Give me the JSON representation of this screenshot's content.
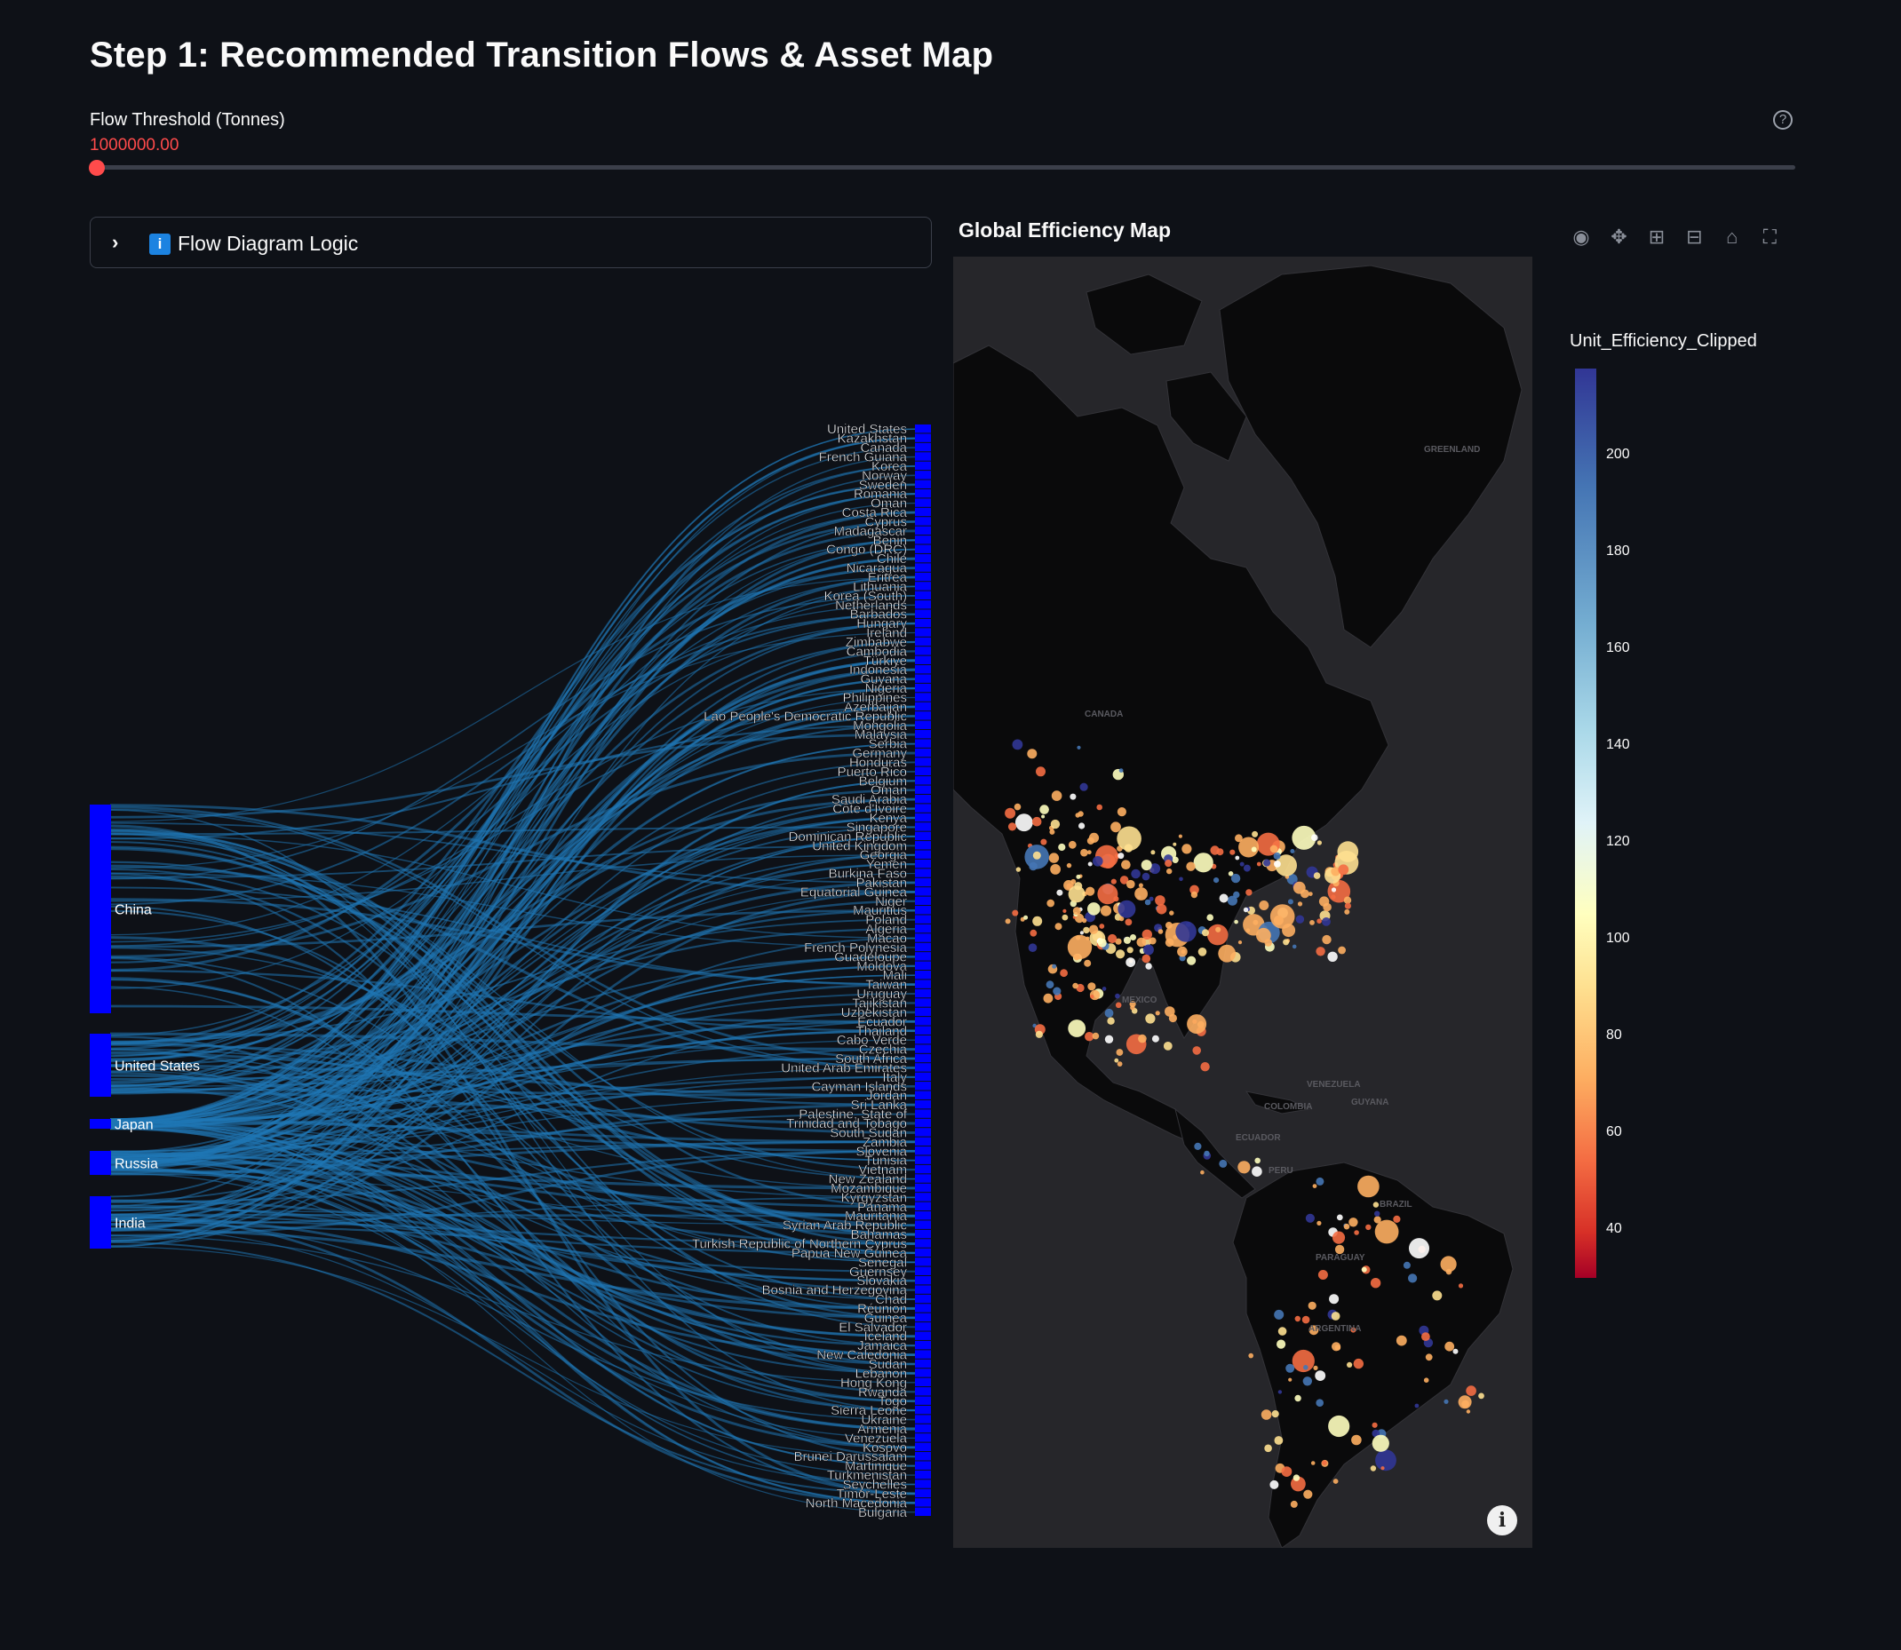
{
  "page": {
    "title": "Step 1: Recommended Transition Flows & Asset Map"
  },
  "slider": {
    "label": "Flow Threshold (Tonnes)",
    "value": "1000000.00",
    "position_fraction": 0.0
  },
  "expander": {
    "label": "Flow Diagram Logic",
    "expanded": false,
    "icon": "info-icon"
  },
  "sankey": {
    "link_color": "#1f77b4",
    "node_color": "#0000ff",
    "sources": [
      {
        "label": "China",
        "share": 0.52
      },
      {
        "label": "United States",
        "share": 0.15
      },
      {
        "label": "Japan",
        "share": 0.025
      },
      {
        "label": "Russia",
        "share": 0.06
      },
      {
        "label": "India",
        "share": 0.13
      }
    ],
    "targets": [
      "United States",
      "Kazakhstan",
      "Canada",
      "French Guiana",
      "Korea",
      "Norway",
      "Sweden",
      "Romania",
      "Oman",
      "Costa Rica",
      "Cyprus",
      "Madagascar",
      "Benin",
      "Congo (DRC)",
      "Chile",
      "Nicaragua",
      "Eritrea",
      "Lithuania",
      "Korea (South)",
      "Netherlands",
      "Barbados",
      "Hungary",
      "Ireland",
      "Zimbabwe",
      "Cambodia",
      "Türkiye",
      "Indonesia",
      "Guyana",
      "Nigeria",
      "Philippines",
      "Azerbaijan",
      "Lao People's Democratic Republic",
      "Mongolia",
      "Malaysia",
      "Serbia",
      "Germany",
      "Honduras",
      "Puerto Rico",
      "Belgium",
      "Oman",
      "Saudi Arabia",
      "Côte d'Ivoire",
      "Kenya",
      "Singapore",
      "Dominican Republic",
      "United Kingdom",
      "Georgia",
      "Yemen",
      "Burkina Faso",
      "Pakistan",
      "Equatorial Guinea",
      "Niger",
      "Mauritius",
      "Poland",
      "Algeria",
      "Macao",
      "French Polynesia",
      "Guadeloupe",
      "Moldova",
      "Mali",
      "Taiwan",
      "Uruguay",
      "Tajikistan",
      "Uzbekistan",
      "Ecuador",
      "Thailand",
      "Cabo Verde",
      "Czechia",
      "South Africa",
      "United Arab Emirates",
      "Italy",
      "Cayman Islands",
      "Jordan",
      "Sri Lanka",
      "Palestine, State of",
      "Trinidad and Tobago",
      "South Sudan",
      "Zambia",
      "Slovenia",
      "Tunisia",
      "Vietnam",
      "New Zealand",
      "Mozambique",
      "Kyrgyzstan",
      "Panama",
      "Mauritania",
      "Syrian Arab Republic",
      "Bahamas",
      "Turkish Republic of Northern Cyprus",
      "Papua New Guinea",
      "Senegal",
      "Guernsey",
      "Slovakia",
      "Bosnia and Herzegovina",
      "Chad",
      "Réunion",
      "Guinea",
      "El Salvador",
      "Iceland",
      "Jamaica",
      "New Caledonia",
      "Sudan",
      "Lebanon",
      "Hong Kong",
      "Rwanda",
      "Togo",
      "Sierra Leone",
      "Ukraine",
      "Armenia",
      "Venezuela",
      "Kosovo",
      "Brunei Darussalam",
      "Martinique",
      "Turkmenistan",
      "Seychelles",
      "Timor-Leste",
      "North Macedonia",
      "Bulgaria"
    ]
  },
  "map": {
    "title": "Global Efficiency Map",
    "info_icon": "info-icon",
    "country_labels": [
      "GREENLAND",
      "CANADA",
      "MEXICO",
      "VENEZUELA",
      "GUYANA",
      "COLOMBIA",
      "ECUADOR",
      "PERU",
      "BRAZIL",
      "PARAGUAY",
      "ARGENTINA"
    ],
    "modebar": [
      "camera-icon",
      "pan-icon",
      "zoom-in-icon",
      "zoom-out-icon",
      "home-icon",
      "fullscreen-icon"
    ]
  },
  "colorbar": {
    "title": "Unit_Efficiency_Clipped",
    "ticks": [
      "200",
      "180",
      "160",
      "140",
      "120",
      "100",
      "80",
      "60",
      "40"
    ],
    "range": [
      30,
      218
    ],
    "colors": [
      "#313695",
      "#4575b4",
      "#74add1",
      "#abd9e9",
      "#e0f3f8",
      "#ffffbf",
      "#fee090",
      "#fdae61",
      "#f46d43",
      "#d73027",
      "#a50026"
    ]
  }
}
